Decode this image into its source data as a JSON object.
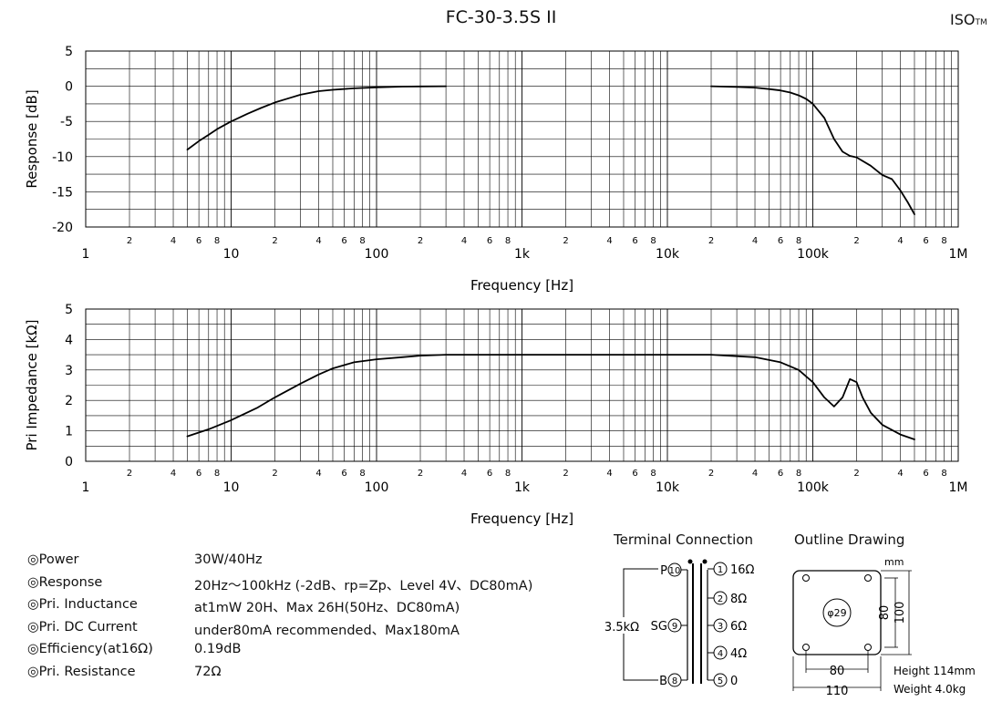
{
  "page_title": "FC-30-3.5S II",
  "brand": {
    "name": "ISO",
    "mark": "TM"
  },
  "chart_data": [
    {
      "type": "line",
      "title": "",
      "xlabel": "Frequency [Hz]",
      "ylabel": "Response [dB]",
      "xscale": "log",
      "xlim": [
        1,
        1000000
      ],
      "ylim": [
        -20,
        5
      ],
      "grid": true,
      "yticks": [
        "5",
        "0",
        "-5",
        "-10",
        "-15",
        "-20"
      ],
      "xticks_major": [
        "1",
        "10",
        "100",
        "1k",
        "10k",
        "100k",
        "1M"
      ],
      "xticks_minor": [
        "2",
        "4",
        "6",
        "8"
      ],
      "series": [
        {
          "x": [
            5,
            6,
            7,
            8,
            10,
            13,
            16,
            20,
            25,
            30,
            40,
            50,
            70,
            100,
            150,
            200,
            300
          ],
          "y": [
            -9,
            -7.8,
            -6.9,
            -6.1,
            -5,
            -3.9,
            -3.1,
            -2.3,
            -1.7,
            -1.2,
            -0.7,
            -0.5,
            -0.3,
            -0.15,
            -0.05,
            -0.02,
            0
          ]
        },
        {
          "x": [
            20000,
            30000,
            40000,
            50000,
            60000,
            70000,
            80000,
            90000,
            100000,
            120000,
            140000,
            160000,
            180000,
            200000,
            250000,
            300000,
            350000,
            400000,
            450000,
            500000
          ],
          "y": [
            0,
            -0.1,
            -0.2,
            -0.4,
            -0.6,
            -0.9,
            -1.3,
            -1.8,
            -2.5,
            -4.5,
            -7.5,
            -9.3,
            -9.9,
            -10.1,
            -11.3,
            -12.6,
            -13.2,
            -14.8,
            -16.5,
            -18.2
          ]
        }
      ]
    },
    {
      "type": "line",
      "title": "",
      "xlabel": "Frequency [Hz]",
      "ylabel": "Pri Impedance [kΩ]",
      "xscale": "log",
      "xlim": [
        1,
        1000000
      ],
      "ylim": [
        0,
        5
      ],
      "grid": true,
      "yticks": [
        "5",
        "4",
        "3",
        "2",
        "1",
        "0"
      ],
      "xticks_major": [
        "1",
        "10",
        "100",
        "1k",
        "10k",
        "100k",
        "1M"
      ],
      "xticks_minor": [
        "2",
        "4",
        "6",
        "8"
      ],
      "series": [
        {
          "x": [
            5,
            7,
            10,
            15,
            20,
            30,
            40,
            50,
            70,
            100,
            150,
            200,
            300,
            500,
            1000,
            5000,
            20000,
            40000,
            60000,
            80000,
            100000,
            120000,
            140000,
            160000,
            180000,
            200000,
            220000,
            250000,
            300000,
            400000,
            500000
          ],
          "y": [
            0.82,
            1.05,
            1.35,
            1.75,
            2.1,
            2.55,
            2.85,
            3.05,
            3.25,
            3.35,
            3.42,
            3.47,
            3.5,
            3.5,
            3.5,
            3.5,
            3.5,
            3.42,
            3.25,
            3.0,
            2.6,
            2.1,
            1.8,
            2.1,
            2.7,
            2.6,
            2.1,
            1.6,
            1.2,
            0.88,
            0.72
          ]
        }
      ]
    }
  ],
  "specs": [
    {
      "label": "◎Power",
      "value": "30W/40Hz"
    },
    {
      "label": "◎Response",
      "value": "20Hz～100kHz (-2dB、rp=Zp、Level 4V、DC80mA)"
    },
    {
      "label": "◎Pri. Inductance",
      "value": "at1mW 20H、Max 26H(50Hz、DC80mA)"
    },
    {
      "label": "◎Pri. DC Current",
      "value": " under80mA recommended、Max180mA"
    },
    {
      "label": "◎Efficiency(at16Ω)",
      "value": "0.19dB"
    },
    {
      "label": "◎Pri. Resistance",
      "value": "72Ω"
    }
  ],
  "terminal": {
    "title": "Terminal Connection",
    "impedance": "3.5kΩ",
    "primary": [
      {
        "name": "P",
        "pin": "10"
      },
      {
        "name": "SG",
        "pin": "9"
      },
      {
        "name": "B",
        "pin": "8"
      }
    ],
    "secondary": [
      {
        "pin": "1",
        "label": "16Ω"
      },
      {
        "pin": "2",
        "label": "8Ω"
      },
      {
        "pin": "3",
        "label": "6Ω"
      },
      {
        "pin": "4",
        "label": "4Ω"
      },
      {
        "pin": "5",
        "label": "0"
      }
    ]
  },
  "outline": {
    "title": "Outline Drawing",
    "unit": "mm",
    "hole": "φ29",
    "dims": {
      "w_inner": "80",
      "w_outer": "110",
      "h_inner": "80",
      "h_outer": "100"
    },
    "height": "Height 114mm",
    "weight": "Weight 4.0kg"
  }
}
